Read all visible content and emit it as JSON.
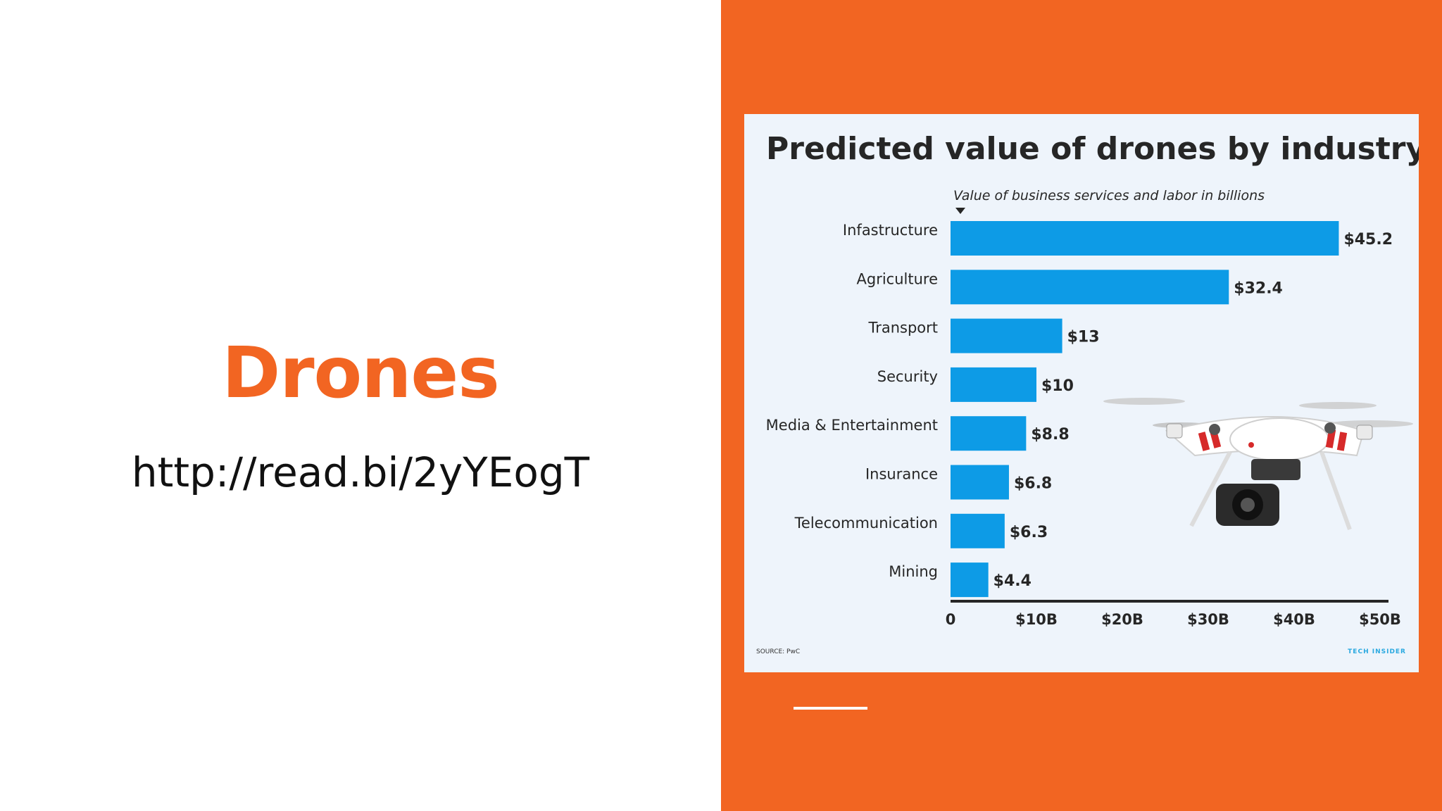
{
  "slide": {
    "title": "Drones",
    "link": "http://read.bi/2yYEogT"
  },
  "colors": {
    "accent": "#f26522",
    "bar": "#0d9be6",
    "panel": "#eef4fb",
    "text_dark": "#262626",
    "brand": "#2aa9e0"
  },
  "image": {
    "description_icon": "drone-icon"
  },
  "chart_data": {
    "type": "bar",
    "orientation": "horizontal",
    "title": "Predicted value of drones by industry",
    "subtitle": "Value of business services and labor in billions",
    "categories": [
      "Infastructure",
      "Agriculture",
      "Transport",
      "Security",
      "Media & Entertainment",
      "Insurance",
      "Telecommunication",
      "Mining"
    ],
    "values": [
      45.2,
      32.4,
      13,
      10,
      8.8,
      6.8,
      6.3,
      4.4
    ],
    "value_labels": [
      "$45.2",
      "$32.4",
      "$13",
      "$10",
      "$8.8",
      "$6.8",
      "$6.3",
      "$4.4"
    ],
    "x_ticks": [
      0,
      10,
      20,
      30,
      40,
      50
    ],
    "x_tick_labels": [
      "0",
      "$10B",
      "$20B",
      "$30B",
      "$40B",
      "$50B"
    ],
    "xlim": [
      0,
      50
    ],
    "grid": false,
    "source": "SOURCE: PwC",
    "brand": "TECH INSIDER"
  }
}
